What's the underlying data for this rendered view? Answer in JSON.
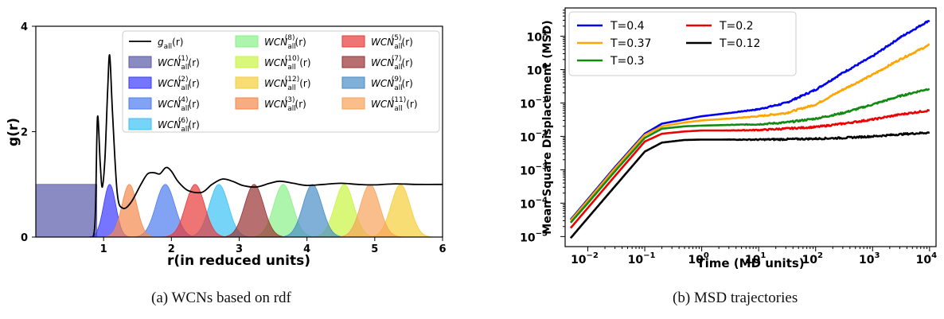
{
  "chart_data": [
    {
      "type": "area",
      "title": "",
      "xlabel": "r(in reduced units)",
      "ylabel": "g(r)",
      "xlim": [
        0,
        6
      ],
      "ylim": [
        0,
        4
      ],
      "xticks": [
        1,
        2,
        3,
        4,
        5,
        6
      ],
      "yticks": [
        0,
        2,
        4
      ],
      "legend_position": "top-right",
      "rdf": {
        "name": "g_all(r)",
        "color": "#000000",
        "points": [
          [
            0.8,
            0.0
          ],
          [
            0.85,
            0.02
          ],
          [
            0.88,
            0.5
          ],
          [
            0.91,
            2.28
          ],
          [
            0.95,
            1.4
          ],
          [
            0.98,
            0.95
          ],
          [
            1.02,
            1.5
          ],
          [
            1.06,
            2.8
          ],
          [
            1.09,
            3.45
          ],
          [
            1.13,
            2.4
          ],
          [
            1.2,
            0.85
          ],
          [
            1.28,
            0.55
          ],
          [
            1.4,
            0.65
          ],
          [
            1.55,
            1.0
          ],
          [
            1.65,
            1.2
          ],
          [
            1.75,
            1.22
          ],
          [
            1.83,
            1.2
          ],
          [
            1.92,
            1.32
          ],
          [
            2.0,
            1.25
          ],
          [
            2.1,
            1.05
          ],
          [
            2.25,
            0.88
          ],
          [
            2.45,
            0.85
          ],
          [
            2.6,
            1.0
          ],
          [
            2.75,
            1.1
          ],
          [
            2.9,
            1.06
          ],
          [
            3.05,
            0.98
          ],
          [
            3.25,
            0.95
          ],
          [
            3.45,
            1.02
          ],
          [
            3.6,
            1.06
          ],
          [
            3.8,
            1.02
          ],
          [
            4.0,
            0.98
          ],
          [
            4.25,
            1.0
          ],
          [
            4.5,
            1.02
          ],
          [
            4.75,
            1.0
          ],
          [
            5.0,
            0.99
          ],
          [
            5.3,
            1.01
          ],
          [
            5.6,
            1.0
          ],
          [
            6.0,
            1.0
          ]
        ]
      },
      "series": [
        {
          "name": "WCN_all^(1)(r)",
          "color": "#5a5aaa",
          "shape": "plateau",
          "center": 0.45,
          "width": 0.9,
          "height": 1.0
        },
        {
          "name": "WCN_all^(2)(r)",
          "color": "#3a3aff",
          "shape": "gaussian",
          "center": 1.09,
          "width": 0.09,
          "height": 1.0
        },
        {
          "name": "WCN_all^(4)(r)",
          "color": "#4d7cf0",
          "shape": "gaussian",
          "center": 1.91,
          "width": 0.14,
          "height": 1.0
        },
        {
          "name": "WCN_all^(6)(r)",
          "color": "#3cc2f5",
          "shape": "gaussian",
          "center": 2.7,
          "width": 0.14,
          "height": 1.0
        },
        {
          "name": "WCN_all^(8)(r)",
          "color": "#8af08a",
          "shape": "gaussian",
          "center": 3.65,
          "width": 0.14,
          "height": 1.0
        },
        {
          "name": "WCN_all^(10)(r)",
          "color": "#c9f542",
          "shape": "gaussian",
          "center": 4.55,
          "width": 0.14,
          "height": 1.0
        },
        {
          "name": "WCN_all^(12)(r)",
          "color": "#f5cf3a",
          "shape": "gaussian",
          "center": 5.38,
          "width": 0.14,
          "height": 1.0
        },
        {
          "name": "WCN_all^(3)(r)",
          "color": "#f5894d",
          "shape": "gaussian",
          "center": 1.38,
          "width": 0.11,
          "height": 1.0
        },
        {
          "name": "WCN_all^(5)(r)",
          "color": "#e83a3a",
          "shape": "gaussian",
          "center": 2.35,
          "width": 0.14,
          "height": 1.0
        },
        {
          "name": "WCN_all^(7)(r)",
          "color": "#9a3232",
          "shape": "gaussian",
          "center": 3.22,
          "width": 0.14,
          "height": 1.0
        },
        {
          "name": "WCN_all^(9)(r)",
          "color": "#4a8ec8",
          "shape": "gaussian",
          "center": 4.08,
          "width": 0.14,
          "height": 1.0
        },
        {
          "name": "WCN_all^(11)(r)",
          "color": "#f7a25a",
          "shape": "gaussian",
          "center": 4.93,
          "width": 0.14,
          "height": 1.0
        }
      ],
      "caption": "(a) WCNs based on rdf"
    },
    {
      "type": "line",
      "title": "",
      "xlabel": "Time (MD units)",
      "ylabel": "Mean Square Displacement (MSD)",
      "x_scale": "log",
      "y_scale": "log",
      "xlim": [
        0.004,
        13000
      ],
      "ylim": [
        5e-06,
        70
      ],
      "xtick_exponents": [
        -2,
        -1,
        0,
        1,
        2,
        3,
        4
      ],
      "ytick_exponents": [
        -5,
        -4,
        -3,
        -2,
        -1,
        0,
        1
      ],
      "legend_position": "top-left",
      "series": [
        {
          "name": "T=0.4",
          "color": "#0000ee",
          "points": [
            [
              0.005,
              3.2e-05
            ],
            [
              0.01,
              0.00013
            ],
            [
              0.03,
              0.0012
            ],
            [
              0.1,
              0.012
            ],
            [
              0.2,
              0.024
            ],
            [
              0.5,
              0.032
            ],
            [
              1,
              0.04
            ],
            [
              3,
              0.05
            ],
            [
              10,
              0.065
            ],
            [
              30,
              0.1
            ],
            [
              100,
              0.25
            ],
            [
              300,
              0.8
            ],
            [
              1000,
              2.5
            ],
            [
              3000,
              9
            ],
            [
              10000,
              30
            ]
          ]
        },
        {
          "name": "T=0.37",
          "color": "#ffa500",
          "points": [
            [
              0.005,
              3e-05
            ],
            [
              0.01,
              0.00012
            ],
            [
              0.03,
              0.0011
            ],
            [
              0.1,
              0.011
            ],
            [
              0.2,
              0.02
            ],
            [
              0.5,
              0.026
            ],
            [
              1,
              0.03
            ],
            [
              3,
              0.034
            ],
            [
              10,
              0.04
            ],
            [
              30,
              0.05
            ],
            [
              100,
              0.09
            ],
            [
              300,
              0.25
            ],
            [
              1000,
              0.7
            ],
            [
              3000,
              2
            ],
            [
              10000,
              5.5
            ]
          ]
        },
        {
          "name": "T=0.3",
          "color": "#138a13",
          "points": [
            [
              0.005,
              2.6e-05
            ],
            [
              0.01,
              0.0001
            ],
            [
              0.03,
              0.0009
            ],
            [
              0.1,
              0.009
            ],
            [
              0.2,
              0.017
            ],
            [
              0.5,
              0.02
            ],
            [
              1,
              0.021
            ],
            [
              3,
              0.022
            ],
            [
              10,
              0.023
            ],
            [
              30,
              0.026
            ],
            [
              100,
              0.034
            ],
            [
              300,
              0.05
            ],
            [
              1000,
              0.09
            ],
            [
              3000,
              0.16
            ],
            [
              10000,
              0.27
            ]
          ]
        },
        {
          "name": "T=0.2",
          "color": "#ee0000",
          "points": [
            [
              0.005,
              1.8e-05
            ],
            [
              0.01,
              7.2e-05
            ],
            [
              0.03,
              0.00065
            ],
            [
              0.1,
              0.007
            ],
            [
              0.2,
              0.012
            ],
            [
              0.5,
              0.014
            ],
            [
              1,
              0.015
            ],
            [
              3,
              0.015
            ],
            [
              10,
              0.0155
            ],
            [
              30,
              0.017
            ],
            [
              100,
              0.019
            ],
            [
              300,
              0.024
            ],
            [
              1000,
              0.032
            ],
            [
              3000,
              0.045
            ],
            [
              10000,
              0.06
            ]
          ]
        },
        {
          "name": "T=0.12",
          "color": "#000000",
          "points": [
            [
              0.005,
              9e-06
            ],
            [
              0.01,
              3.6e-05
            ],
            [
              0.03,
              0.00032
            ],
            [
              0.1,
              0.0035
            ],
            [
              0.2,
              0.0065
            ],
            [
              0.5,
              0.0078
            ],
            [
              1,
              0.008
            ],
            [
              3,
              0.008
            ],
            [
              10,
              0.008
            ],
            [
              30,
              0.0082
            ],
            [
              100,
              0.0085
            ],
            [
              300,
              0.009
            ],
            [
              1000,
              0.01
            ],
            [
              3000,
              0.0115
            ],
            [
              10000,
              0.013
            ]
          ]
        }
      ],
      "caption": "(b) MSD trajectories"
    }
  ]
}
